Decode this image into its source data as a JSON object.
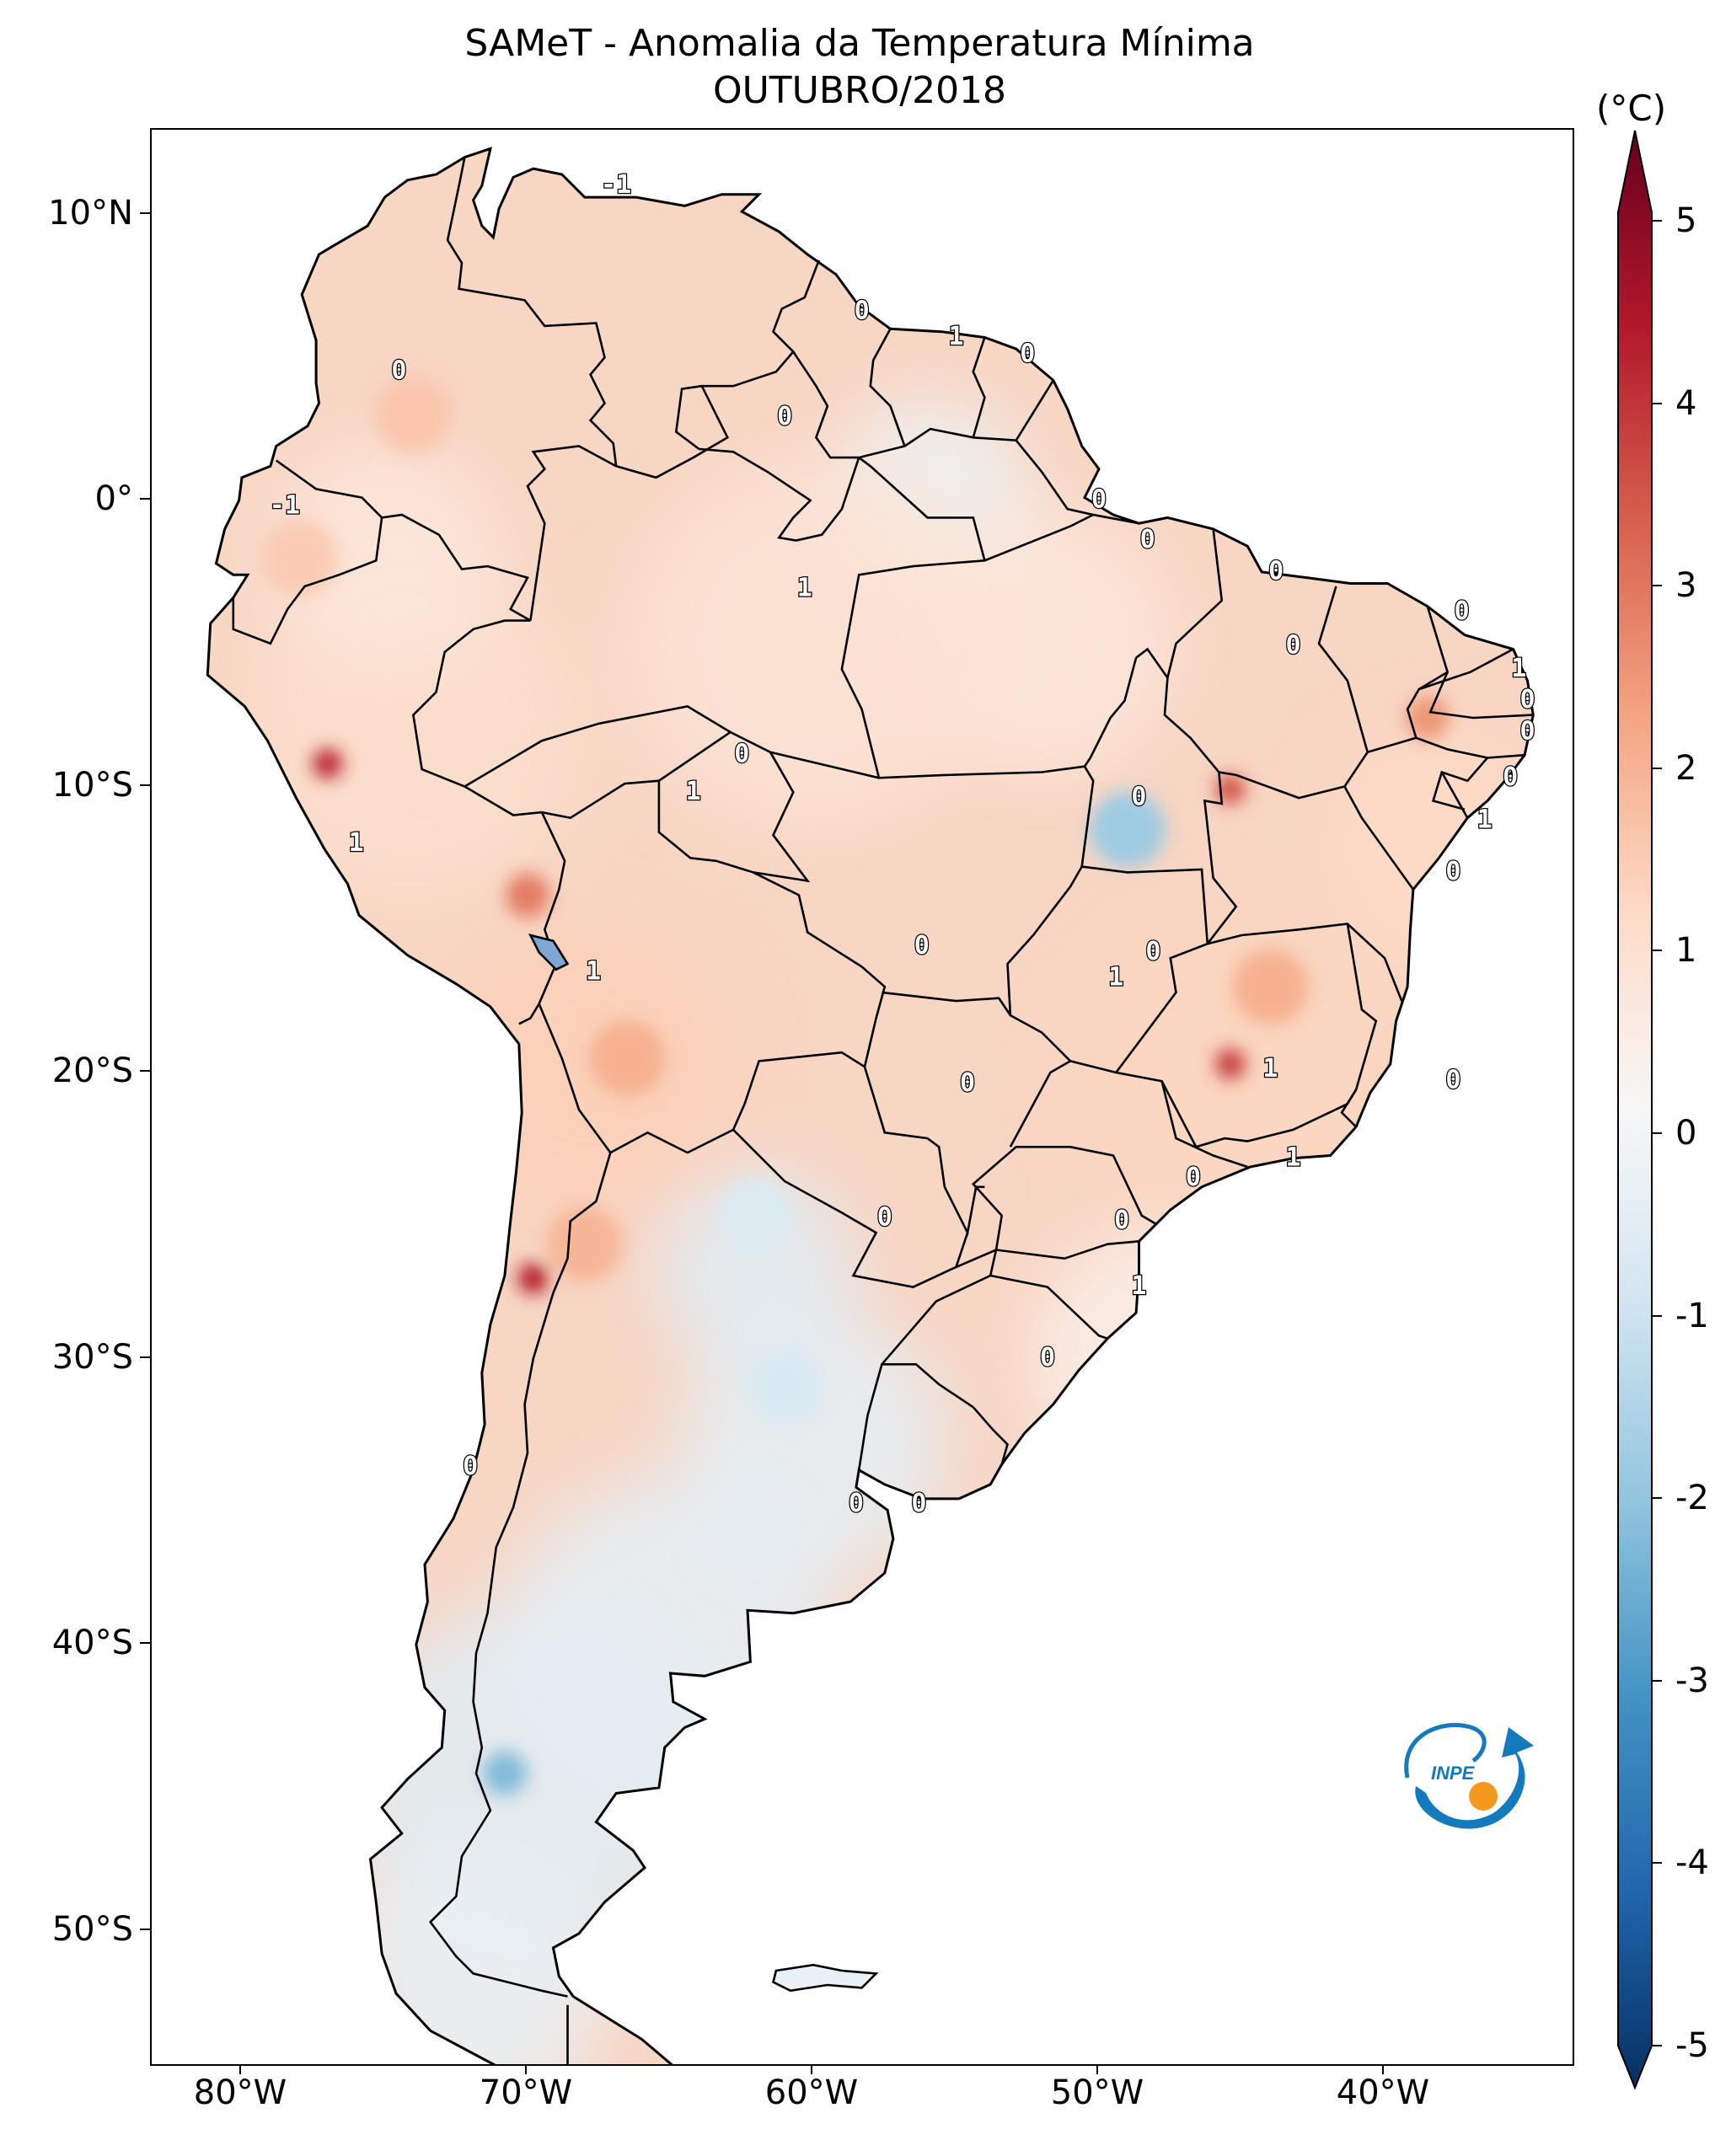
{
  "title": "SAMeT - Anomalia da Temperatura Mínima",
  "subtitle": "OUTUBRO/2018",
  "colorbar": {
    "unit": "(°C)",
    "ticks": [
      "5",
      "4",
      "3",
      "2",
      "1",
      "0",
      "-1",
      "-2",
      "-3",
      "-4",
      "-5"
    ],
    "range": [
      -5,
      5
    ],
    "colormap": [
      "#053061",
      "#2166ac",
      "#4393c3",
      "#92c5de",
      "#d1e5f0",
      "#f7f7f7",
      "#fddbc7",
      "#f4a582",
      "#d6604d",
      "#b2182b",
      "#67001f"
    ]
  },
  "axes": {
    "lat_ticks": [
      "10°N",
      "0°",
      "10°S",
      "20°S",
      "30°S",
      "40°S",
      "50°S"
    ],
    "lon_ticks": [
      "80°W",
      "70°W",
      "60°W",
      "50°W",
      "40°W"
    ]
  },
  "contour_labels": [
    {
      "text": "-1",
      "lon": -66.9,
      "lat": 11.0
    },
    {
      "text": "0",
      "lon": -58.3,
      "lat": 6.6
    },
    {
      "text": "1",
      "lon": -55.0,
      "lat": 5.7
    },
    {
      "text": "0",
      "lon": -52.5,
      "lat": 5.1
    },
    {
      "text": "0",
      "lon": -74.5,
      "lat": 4.5
    },
    {
      "text": "0",
      "lon": -61.0,
      "lat": 2.9
    },
    {
      "text": "-1",
      "lon": -78.5,
      "lat": -0.2
    },
    {
      "text": "0",
      "lon": -50.0,
      "lat": 0.0
    },
    {
      "text": "0",
      "lon": -48.3,
      "lat": -1.4
    },
    {
      "text": "1",
      "lon": -60.3,
      "lat": -3.1
    },
    {
      "text": "0",
      "lon": -43.8,
      "lat": -2.5
    },
    {
      "text": "0",
      "lon": -37.3,
      "lat": -3.9
    },
    {
      "text": "0",
      "lon": -43.2,
      "lat": -5.1
    },
    {
      "text": "1",
      "lon": -35.3,
      "lat": -5.9
    },
    {
      "text": "0",
      "lon": -35.0,
      "lat": -7.0
    },
    {
      "text": "0",
      "lon": -35.0,
      "lat": -8.1
    },
    {
      "text": "0",
      "lon": -35.6,
      "lat": -9.7
    },
    {
      "text": "0",
      "lon": -62.5,
      "lat": -8.9
    },
    {
      "text": "1",
      "lon": -64.2,
      "lat": -10.2
    },
    {
      "text": "0",
      "lon": -48.6,
      "lat": -10.4
    },
    {
      "text": "1",
      "lon": -36.5,
      "lat": -11.2
    },
    {
      "text": "1",
      "lon": -76.0,
      "lat": -12.0
    },
    {
      "text": "0",
      "lon": -37.6,
      "lat": -13.0
    },
    {
      "text": "0",
      "lon": -56.2,
      "lat": -15.6
    },
    {
      "text": "0",
      "lon": -48.1,
      "lat": -15.8
    },
    {
      "text": "1",
      "lon": -49.4,
      "lat": -16.7
    },
    {
      "text": "1",
      "lon": -67.7,
      "lat": -16.5
    },
    {
      "text": "1",
      "lon": -44.0,
      "lat": -19.9
    },
    {
      "text": "0",
      "lon": -54.6,
      "lat": -20.4
    },
    {
      "text": "0",
      "lon": -37.6,
      "lat": -20.3
    },
    {
      "text": "1",
      "lon": -43.2,
      "lat": -23.0
    },
    {
      "text": "0",
      "lon": -46.7,
      "lat": -23.7
    },
    {
      "text": "0",
      "lon": -57.5,
      "lat": -25.1
    },
    {
      "text": "0",
      "lon": -49.2,
      "lat": -25.2
    },
    {
      "text": "1",
      "lon": -48.6,
      "lat": -27.5
    },
    {
      "text": "0",
      "lon": -51.8,
      "lat": -30.0
    },
    {
      "text": "0",
      "lon": -72.0,
      "lat": -33.8
    },
    {
      "text": "0",
      "lon": -58.5,
      "lat": -35.1
    },
    {
      "text": "0",
      "lon": -56.3,
      "lat": -35.1
    }
  ],
  "anomaly_spots": [
    {
      "lon": -77.0,
      "lat": -9.2,
      "value": 3.8
    },
    {
      "lon": -69.8,
      "lat": -27.2,
      "value": 4.0
    },
    {
      "lon": -45.4,
      "lat": -10.1,
      "value": 3.2
    },
    {
      "lon": -45.4,
      "lat": -19.7,
      "value": 3.5
    },
    {
      "lon": -70.0,
      "lat": -13.8,
      "value": 2.6
    },
    {
      "lon": -66.5,
      "lat": -19.5,
      "value": 1.8
    },
    {
      "lon": -68.0,
      "lat": -26.0,
      "value": 1.7
    },
    {
      "lon": -44.0,
      "lat": -17.0,
      "value": 1.8
    },
    {
      "lon": -49.0,
      "lat": -11.5,
      "value": -1.8
    },
    {
      "lon": -70.8,
      "lat": -44.5,
      "value": -2.2
    },
    {
      "lon": -74.0,
      "lat": 3.0,
      "value": 1.4
    },
    {
      "lon": -78.0,
      "lat": -2.0,
      "value": 1.3
    },
    {
      "lon": -62.0,
      "lat": -25.0,
      "value": -0.7
    },
    {
      "lon": -61.0,
      "lat": -31.0,
      "value": -0.8
    },
    {
      "lon": -62.0,
      "lat": -43.0,
      "value": -0.4
    },
    {
      "lon": -38.5,
      "lat": -7.6,
      "value": 2.2
    }
  ]
}
